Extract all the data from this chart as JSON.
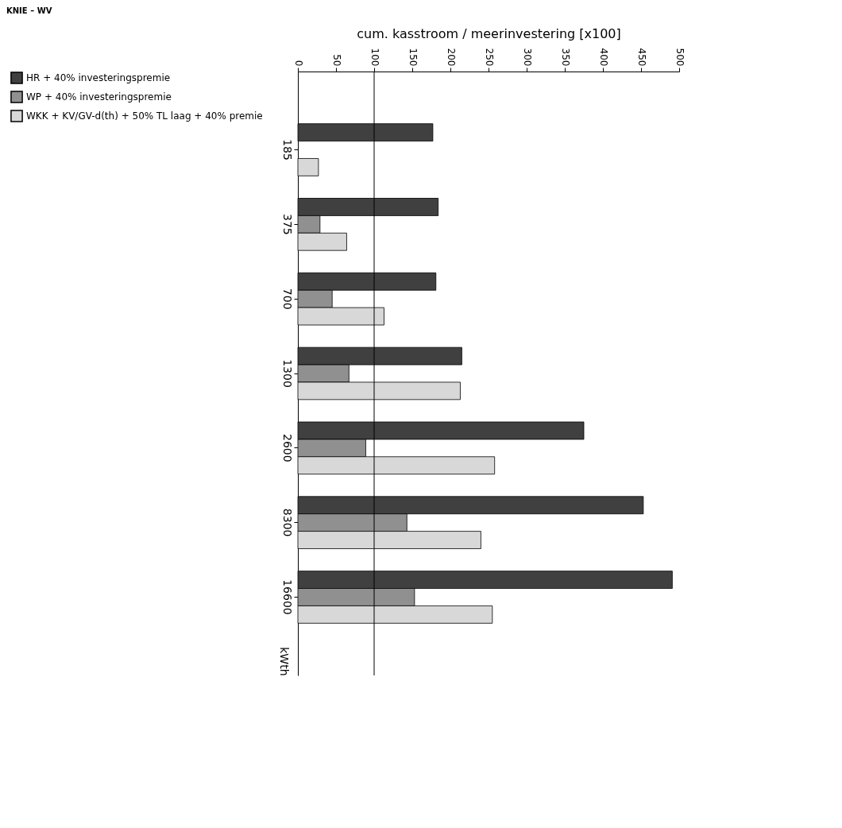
{
  "chart_data": {
    "type": "bar",
    "orientation": "horizontal",
    "xlabel": "cum. kasstroom / meerinvestering [x100]",
    "ylabel": "kWth",
    "annotations": [
      "KNIE – WV"
    ],
    "categories": [
      "185",
      "375",
      "700",
      "1300",
      "2600",
      "8300",
      "16600"
    ],
    "series": [
      {
        "name": "HR + 40% investeringspremie",
        "color": "#404040",
        "values": [
          177,
          184,
          181,
          215,
          375,
          453,
          491
        ]
      },
      {
        "name": "WP + 40% investeringspremie",
        "color": "#909090",
        "values": [
          null,
          29,
          45,
          67,
          89,
          143,
          153
        ]
      },
      {
        "name": "WKK + KV/GV-d(th) + 50% TL laag + 40% premie",
        "color": "#d8d8d8",
        "values": [
          27,
          64,
          113,
          213,
          258,
          240,
          255
        ]
      }
    ],
    "xlim": [
      0,
      500
    ],
    "xticks": [
      0,
      50,
      100,
      150,
      200,
      250,
      300,
      350,
      400,
      450,
      500
    ],
    "ref_lines": [
      {
        "axis": "x",
        "value": 100,
        "color": "#000000"
      }
    ],
    "grid": false,
    "legend": "left"
  }
}
